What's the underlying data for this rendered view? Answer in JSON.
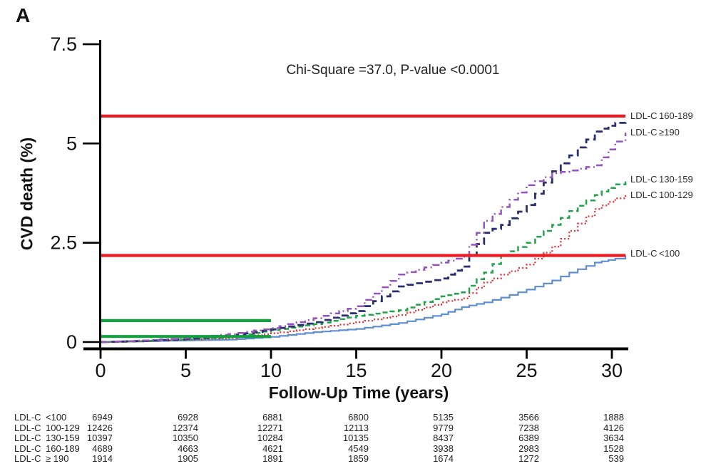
{
  "panel_label": "A",
  "annotation": "Chi-Square =37.0, P-value <0.0001",
  "chart_data": {
    "type": "line",
    "title": "",
    "xlabel": "Follow-Up Time (years)",
    "ylabel": "CVD death (%)",
    "xlim": [
      0,
      30.8
    ],
    "ylim": [
      0,
      7.9
    ],
    "grid": false,
    "x_ticks": [
      0,
      5,
      10,
      15,
      20,
      25,
      30
    ],
    "y_ticks": [
      0,
      2.5,
      5,
      7.5
    ],
    "legend_position": "right-curve-end-labels",
    "x": [
      0,
      2.5,
      5,
      7.5,
      10,
      12.5,
      15,
      17.5,
      20,
      21.2,
      22.5,
      23.5,
      25,
      26.5,
      27.5,
      29,
      30.2,
      30.8
    ],
    "series": [
      {
        "name": "LDL-C <100",
        "color": "#5f8fd0",
        "dash": "solid",
        "width": 2.2,
        "values": [
          0,
          0.02,
          0.04,
          0.06,
          0.13,
          0.25,
          0.33,
          0.48,
          0.7,
          0.88,
          1.0,
          1.12,
          1.32,
          1.55,
          1.75,
          2.0,
          2.1,
          2.18
        ]
      },
      {
        "name": "LDL-C 100-129",
        "color": "#e0333a",
        "dash": "dotted",
        "width": 2.3,
        "values": [
          0,
          0.02,
          0.06,
          0.1,
          0.22,
          0.35,
          0.5,
          0.68,
          1.0,
          1.1,
          1.5,
          1.7,
          1.95,
          2.4,
          2.8,
          3.35,
          3.62,
          3.73
        ]
      },
      {
        "name": "LDL-C 130-159",
        "color": "#22a24b",
        "dash": "dashed",
        "width": 2.5,
        "values": [
          0,
          0.03,
          0.07,
          0.12,
          0.3,
          0.45,
          0.66,
          0.8,
          1.15,
          1.25,
          1.75,
          2.18,
          2.5,
          2.95,
          3.3,
          3.7,
          3.97,
          4.05
        ]
      },
      {
        "name": "LDL-C 160-189",
        "color": "#2c2f6e",
        "dash": "longdash",
        "width": 2.8,
        "values": [
          0,
          0.03,
          0.08,
          0.15,
          0.32,
          0.5,
          0.78,
          1.4,
          1.6,
          1.9,
          2.75,
          2.95,
          3.45,
          4.3,
          4.7,
          5.3,
          5.52,
          5.62
        ]
      },
      {
        "name": "LDL-C ≥190",
        "color": "#9455b8",
        "dash": "dashdot",
        "width": 2.5,
        "values": [
          0,
          0.04,
          0.1,
          0.2,
          0.35,
          0.6,
          0.9,
          1.7,
          2.0,
          2.15,
          3.05,
          3.4,
          3.95,
          4.25,
          4.32,
          4.45,
          5.05,
          5.27
        ]
      }
    ],
    "reference_lines": [
      {
        "color": "#ec1b23",
        "value": 5.69,
        "from_x": 0,
        "to_x": 30.8
      },
      {
        "color": "#ec1b23",
        "value": 2.18,
        "from_x": 0,
        "to_x": 30.8
      },
      {
        "color": "#169f40",
        "value": 0.54,
        "from_x": 0,
        "to_x": 10
      },
      {
        "color": "#169f40",
        "value": 0.14,
        "from_x": 0,
        "to_x": 10
      }
    ],
    "end_labels": [
      {
        "prefix": "LDL-C",
        "value": "160-189",
        "at": 5.69
      },
      {
        "prefix": "LDL-C",
        "value": "≥190",
        "at": 5.28
      },
      {
        "prefix": "LDL-C",
        "value": "130-159",
        "at": 4.09
      },
      {
        "prefix": "LDL-C",
        "value": "100-129",
        "at": 3.7
      },
      {
        "prefix": "LDL-C",
        "value": "<100",
        "at": 2.22
      }
    ]
  },
  "risk_table": {
    "rows": [
      {
        "label_prefix": "LDL-C",
        "label_value": "<100",
        "counts": [
          6949,
          6928,
          6881,
          6800,
          5135,
          3566,
          1888
        ]
      },
      {
        "label_prefix": "LDL-C",
        "label_value": "100-129",
        "counts": [
          12426,
          12374,
          12271,
          12113,
          9779,
          7238,
          4126
        ]
      },
      {
        "label_prefix": "LDL-C",
        "label_value": "130-159",
        "counts": [
          10397,
          10350,
          10284,
          10135,
          8437,
          6389,
          3634
        ]
      },
      {
        "label_prefix": "LDL-C",
        "label_value": "160-189",
        "counts": [
          4689,
          4663,
          4621,
          4549,
          3938,
          2983,
          1528
        ]
      },
      {
        "label_prefix": "LDL-C",
        "label_value": "≥ 190",
        "counts": [
          1914,
          1905,
          1891,
          1859,
          1674,
          1272,
          539
        ]
      }
    ]
  }
}
